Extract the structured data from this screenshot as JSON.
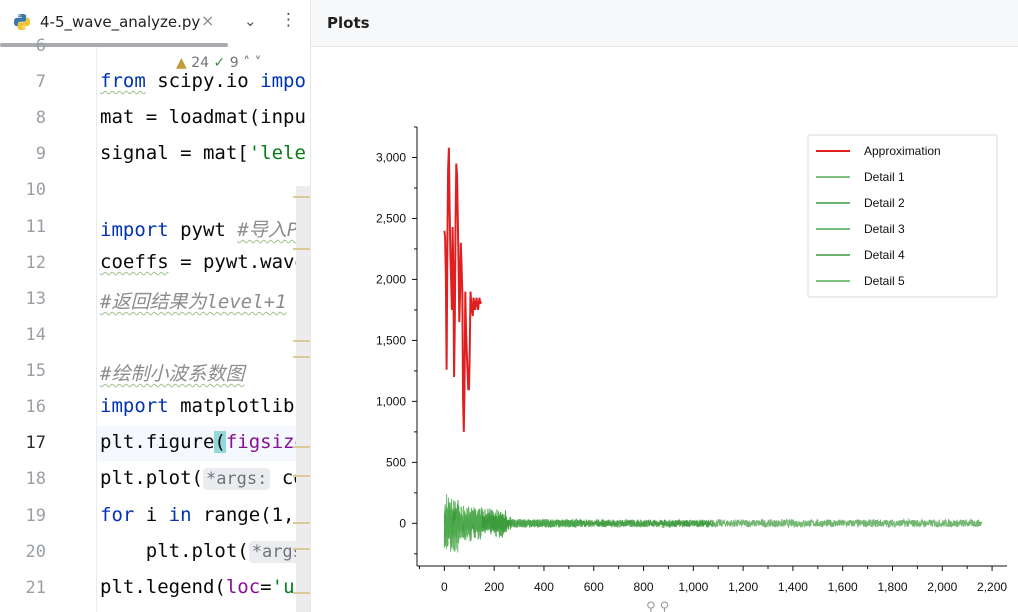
{
  "editor": {
    "tab": {
      "filename": "4-5_wave_analyze.py",
      "close_icon": "×",
      "menu_icon": "⌄",
      "more_icon": "⋮"
    },
    "inspections": {
      "warnings": "24",
      "weak_warnings": "9"
    },
    "lines": [
      {
        "num": "6",
        "text": ""
      },
      {
        "num": "7",
        "text": "from scipy.io impo"
      },
      {
        "num": "8",
        "text": "mat = loadmat(inpu"
      },
      {
        "num": "9",
        "text": "signal = mat['lele"
      },
      {
        "num": "10",
        "text": ""
      },
      {
        "num": "11",
        "text": "import pywt #导入P"
      },
      {
        "num": "12",
        "text": "coeffs = pywt.wave"
      },
      {
        "num": "13",
        "text": "#返回结果为level+1"
      },
      {
        "num": "14",
        "text": ""
      },
      {
        "num": "15",
        "text": "#绘制小波系数图"
      },
      {
        "num": "16",
        "text": "import matplotlib."
      },
      {
        "num": "17",
        "text": "plt.figure(figsize"
      },
      {
        "num": "18",
        "text": "plt.plot( *args: co"
      },
      {
        "num": "19",
        "text": "for i in range(1,"
      },
      {
        "num": "20",
        "text": "    plt.plot( *args"
      },
      {
        "num": "21",
        "text": "plt.legend(loc='up"
      }
    ],
    "current_line": "17",
    "segments": {
      "l7_kw1": "from",
      "l7_mid": " scipy.io ",
      "l7_kw2": "impo",
      "l8": "mat = loadmat(inpu",
      "l9_a": "signal = mat[",
      "l9_str": "'lele",
      "l11_kw": "import",
      "l11_mid": " pywt ",
      "l11_cmt": "#导入P",
      "l12_a": "coeffs",
      "l12_b": " = pywt.wave",
      "l13_cmt": "#返回结果为level+1",
      "l15_cmt": "#绘制小波系数图",
      "l16_kw": "import",
      "l16_b": " matplotlib.",
      "l17_a": "plt.figure",
      "l17_paren": "(",
      "l17_arg": "figsize",
      "l18_a": "plt.plot(",
      "l18_hint": "*args:",
      "l18_b": " co",
      "l19_kw1": "for",
      "l19_b": " i ",
      "l19_kw2": "in",
      "l19_c": " range(1,",
      "l20_a": "    plt.plot(",
      "l20_hint": "*args",
      "l21_a": "plt.legend(",
      "l21_arg": "loc",
      "l21_b": "=",
      "l21_str": "'up"
    }
  },
  "plots_panel": {
    "title": "Plots"
  },
  "chart_data": {
    "type": "line",
    "title": "",
    "xlabel": "",
    "ylabel": "",
    "xlim": [
      -110,
      2260
    ],
    "ylim": [
      -350,
      3250
    ],
    "xticks": [
      0,
      200,
      400,
      600,
      800,
      1000,
      1200,
      1400,
      1600,
      1800,
      2000,
      2200
    ],
    "xtick_labels": [
      "0",
      "200",
      "400",
      "600",
      "800",
      "1,000",
      "1,200",
      "1,400",
      "1,600",
      "1,800",
      "2,000",
      "2,200"
    ],
    "yticks": [
      0,
      500,
      1000,
      1500,
      2000,
      2500,
      3000
    ],
    "ytick_labels": [
      "0",
      "500",
      "1,000",
      "1,500",
      "2,000",
      "2,500",
      "3,000"
    ],
    "legend_position": "top-right",
    "series": [
      {
        "name": "Approximation",
        "color": "#e02020",
        "length": 150,
        "x": [
          0,
          3,
          6,
          9,
          12,
          15,
          18,
          21,
          24,
          27,
          30,
          33,
          36,
          39,
          42,
          45,
          48,
          51,
          54,
          57,
          60,
          63,
          66,
          69,
          72,
          75,
          78,
          81,
          84,
          87,
          90,
          93,
          96,
          99,
          102,
          105,
          108,
          111,
          114,
          117,
          120,
          123,
          126,
          129,
          132,
          135,
          138,
          141,
          144,
          147
        ],
        "y": [
          2400,
          2350,
          2000,
          1260,
          2300,
          2900,
          3080,
          2600,
          2200,
          2000,
          1750,
          2430,
          2100,
          1200,
          1650,
          2500,
          2950,
          2850,
          2500,
          2100,
          1650,
          1900,
          2300,
          2100,
          1900,
          1000,
          750,
          1100,
          1900,
          1600,
          1400,
          1250,
          1100,
          1100,
          1450,
          1900,
          1800,
          1750,
          1700,
          1850,
          1800,
          1750,
          1800,
          1850,
          1800,
          1750,
          1800,
          1850,
          1800,
          1820
        ]
      },
      {
        "name": "Detail 1",
        "color": "#5aaa5a",
        "length": 2160,
        "noise_amplitude": 70
      },
      {
        "name": "Detail 2",
        "color": "#3c9a3c",
        "length": 1080,
        "noise_amplitude": 60
      },
      {
        "name": "Detail 3",
        "color": "#4ca84c",
        "length": 540,
        "noise_amplitude": 80
      },
      {
        "name": "Detail 4",
        "color": "#3a9a3a",
        "length": 270,
        "noise_amplitude": 120
      },
      {
        "name": "Detail 5",
        "color": "#52ad52",
        "length": 150,
        "noise_amplitude": 150
      }
    ]
  }
}
